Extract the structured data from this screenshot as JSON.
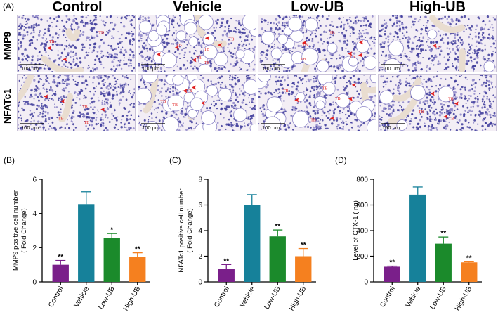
{
  "figure": {
    "panel_a_letter": "(A)",
    "column_headers": [
      "Control",
      "Vehicle",
      "Low-UB",
      "High-UB"
    ],
    "row_labels": [
      "MMP9",
      "NFATc1"
    ],
    "micrographs": [
      [
        {
          "scale": "100 μm",
          "labels": [
            "TB",
            "TB"
          ]
        },
        {
          "scale": "100 μm",
          "labels": [
            "TB",
            "TB",
            "TB",
            "TB",
            "TB"
          ]
        },
        {
          "scale": "100 μm",
          "labels": [
            "TB",
            "TB",
            "TB",
            "TB"
          ]
        },
        {
          "scale": "100 μm",
          "labels": [
            "TB"
          ]
        }
      ],
      [
        {
          "scale": "100 μm",
          "labels": [
            "TB",
            "TB",
            "TB"
          ]
        },
        {
          "scale": "100 μm",
          "labels": [
            "TB",
            "TB",
            "TB"
          ]
        },
        {
          "scale": "100 μm",
          "labels": [
            "TB",
            "TB",
            "TB",
            "TB"
          ]
        },
        {
          "scale": "100 μm",
          "labels": [
            "TB",
            "TB",
            "TB"
          ]
        }
      ]
    ],
    "colors": {
      "tissue": "#3c3a9a",
      "tissue_light": "#8d86c8",
      "background": "#f3eef5",
      "arrow": "#e02020",
      "trabecular": "#e9ddd0"
    }
  },
  "chart_data": [
    {
      "panel": "(B)",
      "type": "bar",
      "categories": [
        "Control",
        "Vehicle",
        "Low-UB",
        "High-UB"
      ],
      "values": [
        1.0,
        4.55,
        2.55,
        1.45
      ],
      "errors": [
        0.25,
        0.72,
        0.28,
        0.25
      ],
      "significance": [
        "**",
        "",
        "*",
        "**"
      ],
      "ylabel_lines": [
        "MMP9 positive cell number",
        "( Fold Change)"
      ],
      "ylim": [
        0,
        6
      ],
      "yticks": [
        0,
        2,
        4,
        6
      ],
      "colors": [
        "#7a1f8a",
        "#16819a",
        "#1b8a2b",
        "#f5801f"
      ]
    },
    {
      "panel": "(C)",
      "type": "bar",
      "categories": [
        "Control",
        "Vehicle",
        "Low-UB",
        "High-UB"
      ],
      "values": [
        1.0,
        6.0,
        3.55,
        2.0
      ],
      "errors": [
        0.35,
        0.8,
        0.5,
        0.6
      ],
      "significance": [
        "**",
        "",
        "**",
        "**"
      ],
      "ylabel_lines": [
        "NFATc1 positive cell number",
        "( Fold Change)"
      ],
      "ylim": [
        0,
        8
      ],
      "yticks": [
        0,
        2,
        4,
        6,
        8
      ],
      "colors": [
        "#7a1f8a",
        "#16819a",
        "#1b8a2b",
        "#f5801f"
      ]
    },
    {
      "panel": "(D)",
      "type": "bar",
      "categories": [
        "Control",
        "Vehicle",
        "Low-UB",
        "High-UB"
      ],
      "values": [
        118,
        680,
        298,
        152
      ],
      "errors": [
        5,
        60,
        52,
        5
      ],
      "significance": [
        "**",
        "",
        "**",
        "**"
      ],
      "ylabel_lines": [
        "Level of CTX-1 ( ng)"
      ],
      "ylim": [
        0,
        800
      ],
      "yticks": [
        0,
        200,
        400,
        600,
        800
      ],
      "colors": [
        "#7a1f8a",
        "#16819a",
        "#1b8a2b",
        "#f5801f"
      ]
    }
  ]
}
